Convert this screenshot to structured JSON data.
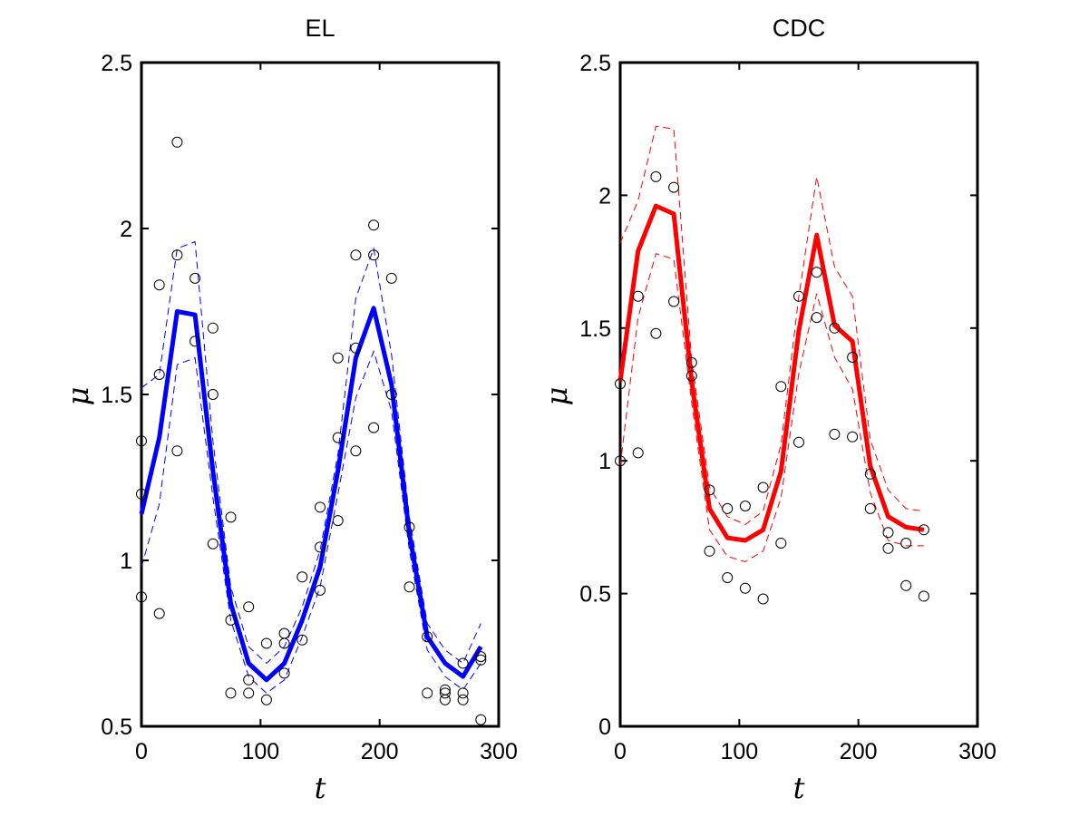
{
  "chart_data": [
    {
      "type": "line",
      "title": "EL",
      "xlabel": "t",
      "ylabel": "μ",
      "xlim": [
        0,
        300
      ],
      "ylim": [
        0.5,
        2.5
      ],
      "xticks": [
        "0",
        "100",
        "200",
        "300"
      ],
      "yticks": [
        "0.5",
        "1",
        "1.5",
        "2",
        "2.5"
      ],
      "grid": false,
      "color": "#0000ff",
      "x": [
        0,
        15,
        30,
        45,
        60,
        75,
        90,
        105,
        120,
        135,
        150,
        165,
        180,
        195,
        210,
        225,
        240,
        255,
        270,
        285
      ],
      "mean": [
        1.14,
        1.37,
        1.75,
        1.74,
        1.27,
        0.87,
        0.69,
        0.64,
        0.69,
        0.82,
        0.98,
        1.27,
        1.61,
        1.76,
        1.53,
        1.08,
        0.77,
        0.69,
        0.65,
        0.74
      ],
      "upper": [
        1.52,
        1.56,
        1.94,
        1.96,
        1.36,
        0.92,
        0.74,
        0.69,
        0.74,
        0.86,
        1.03,
        1.32,
        1.79,
        1.94,
        1.62,
        1.13,
        0.81,
        0.73,
        0.69,
        0.81
      ],
      "lower": [
        0.98,
        1.17,
        1.59,
        1.61,
        1.19,
        0.82,
        0.65,
        0.6,
        0.64,
        0.77,
        0.92,
        1.2,
        1.49,
        1.63,
        1.45,
        1.03,
        0.73,
        0.65,
        0.61,
        0.69
      ],
      "scatter": [
        [
          0,
          1.36
        ],
        [
          0,
          1.2
        ],
        [
          0,
          0.89
        ],
        [
          15,
          1.83
        ],
        [
          15,
          1.56
        ],
        [
          15,
          0.84
        ],
        [
          30,
          2.26
        ],
        [
          30,
          1.92
        ],
        [
          30,
          1.33
        ],
        [
          45,
          1.85
        ],
        [
          45,
          1.66
        ],
        [
          60,
          1.7
        ],
        [
          60,
          1.5
        ],
        [
          60,
          1.05
        ],
        [
          75,
          1.13
        ],
        [
          75,
          0.82
        ],
        [
          75,
          0.6
        ],
        [
          90,
          0.86
        ],
        [
          90,
          0.64
        ],
        [
          90,
          0.6
        ],
        [
          105,
          0.75
        ],
        [
          105,
          0.58
        ],
        [
          120,
          0.78
        ],
        [
          120,
          0.75
        ],
        [
          120,
          0.66
        ],
        [
          135,
          0.95
        ],
        [
          135,
          0.76
        ],
        [
          150,
          1.16
        ],
        [
          150,
          1.04
        ],
        [
          150,
          0.91
        ],
        [
          165,
          1.61
        ],
        [
          165,
          1.37
        ],
        [
          165,
          1.12
        ],
        [
          180,
          1.92
        ],
        [
          180,
          1.64
        ],
        [
          180,
          1.33
        ],
        [
          195,
          2.01
        ],
        [
          195,
          1.92
        ],
        [
          195,
          1.4
        ],
        [
          210,
          1.85
        ],
        [
          210,
          1.5
        ],
        [
          225,
          1.1
        ],
        [
          225,
          0.92
        ],
        [
          240,
          0.77
        ],
        [
          240,
          0.6
        ],
        [
          255,
          0.61
        ],
        [
          255,
          0.6
        ],
        [
          255,
          0.58
        ],
        [
          270,
          0.69
        ],
        [
          270,
          0.6
        ],
        [
          270,
          0.58
        ],
        [
          285,
          0.71
        ],
        [
          285,
          0.7
        ],
        [
          285,
          0.52
        ]
      ]
    },
    {
      "type": "line",
      "title": "CDC",
      "xlabel": "t",
      "ylabel": "μ",
      "xlim": [
        0,
        300
      ],
      "ylim": [
        0,
        2.5
      ],
      "xticks": [
        "0",
        "100",
        "200",
        "300"
      ],
      "yticks": [
        "0",
        "0.5",
        "1",
        "1.5",
        "2",
        "2.5"
      ],
      "grid": false,
      "color": "#ff0000",
      "x": [
        0,
        15,
        30,
        45,
        60,
        75,
        90,
        105,
        120,
        135,
        150,
        165,
        180,
        195,
        210,
        225,
        240,
        255
      ],
      "mean": [
        1.3,
        1.79,
        1.96,
        1.93,
        1.3,
        0.82,
        0.71,
        0.7,
        0.74,
        0.96,
        1.49,
        1.85,
        1.51,
        1.45,
        0.98,
        0.79,
        0.75,
        0.74
      ],
      "upper": [
        1.82,
        1.98,
        2.26,
        2.25,
        1.38,
        0.9,
        0.79,
        0.76,
        0.81,
        1.06,
        1.62,
        2.07,
        1.73,
        1.62,
        1.08,
        0.89,
        0.82,
        0.81
      ],
      "lower": [
        0.98,
        1.54,
        1.78,
        1.76,
        1.22,
        0.74,
        0.64,
        0.62,
        0.66,
        0.86,
        1.33,
        1.63,
        1.39,
        1.27,
        0.88,
        0.7,
        0.68,
        0.68
      ],
      "scatter": [
        [
          0,
          1.29
        ],
        [
          0,
          1.0
        ],
        [
          15,
          1.62
        ],
        [
          15,
          1.03
        ],
        [
          30,
          2.07
        ],
        [
          30,
          1.48
        ],
        [
          45,
          2.03
        ],
        [
          45,
          1.6
        ],
        [
          60,
          1.37
        ],
        [
          60,
          1.32
        ],
        [
          75,
          0.89
        ],
        [
          75,
          0.66
        ],
        [
          90,
          0.82
        ],
        [
          90,
          0.56
        ],
        [
          105,
          0.83
        ],
        [
          105,
          0.52
        ],
        [
          120,
          0.9
        ],
        [
          120,
          0.48
        ],
        [
          135,
          1.28
        ],
        [
          135,
          0.69
        ],
        [
          150,
          1.62
        ],
        [
          150,
          1.07
        ],
        [
          165,
          1.71
        ],
        [
          165,
          1.54
        ],
        [
          180,
          1.5
        ],
        [
          180,
          1.1
        ],
        [
          195,
          1.39
        ],
        [
          195,
          1.09
        ],
        [
          210,
          0.95
        ],
        [
          210,
          0.82
        ],
        [
          225,
          0.73
        ],
        [
          225,
          0.67
        ],
        [
          240,
          0.69
        ],
        [
          240,
          0.53
        ],
        [
          255,
          0.74
        ],
        [
          255,
          0.49
        ]
      ]
    }
  ]
}
